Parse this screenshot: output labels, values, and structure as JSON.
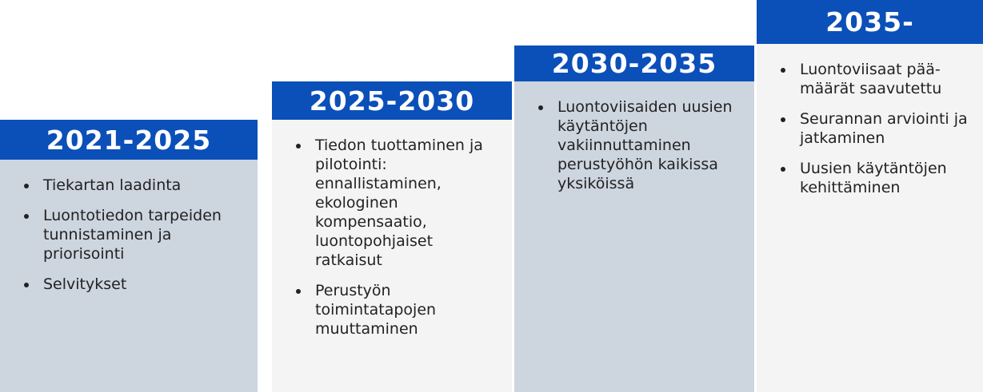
{
  "columns": [
    {
      "title": "2021-2025",
      "items": [
        "Tiekartan laadinta",
        "Luontotiedon tarpeiden tunnistaminen ja priorisointi",
        "Selvitykset"
      ]
    },
    {
      "title": "2025-2030",
      "items": [
        "Tiedon tuottaminen ja pilotointi: ennallistaminen, ekologinen kompensaatio, luontopohjaiset ratkaisut",
        "Perustyön toimintatapojen muuttaminen"
      ]
    },
    {
      "title": "2030-2035",
      "items": [
        "Luontoviisaiden uusien käytäntöjen vakiinnuttaminen perustyöhön kaikissa yksiköissä"
      ]
    },
    {
      "title": "2035-",
      "items": [
        "Luontoviisaat pää-määrät saavutettu",
        "Seurannan arviointi ja jatkaminen",
        "Uusien käytäntöjen kehittäminen"
      ]
    }
  ]
}
